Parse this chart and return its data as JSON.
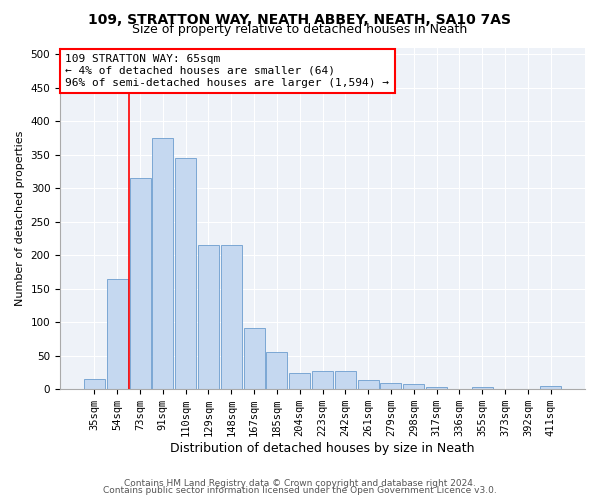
{
  "title1": "109, STRATTON WAY, NEATH ABBEY, NEATH, SA10 7AS",
  "title2": "Size of property relative to detached houses in Neath",
  "xlabel": "Distribution of detached houses by size in Neath",
  "ylabel": "Number of detached properties",
  "categories": [
    "35sqm",
    "54sqm",
    "73sqm",
    "91sqm",
    "110sqm",
    "129sqm",
    "148sqm",
    "167sqm",
    "185sqm",
    "204sqm",
    "223sqm",
    "242sqm",
    "261sqm",
    "279sqm",
    "298sqm",
    "317sqm",
    "336sqm",
    "355sqm",
    "373sqm",
    "392sqm",
    "411sqm"
  ],
  "values": [
    15,
    165,
    315,
    375,
    345,
    215,
    215,
    92,
    55,
    24,
    27,
    27,
    14,
    10,
    8,
    4,
    0,
    4,
    0,
    0,
    5
  ],
  "bar_color": "#c5d8f0",
  "bar_edge_color": "#7ba7d4",
  "vline_x": 1.5,
  "vline_color": "red",
  "annotation_text": "109 STRATTON WAY: 65sqm\n← 4% of detached houses are smaller (64)\n96% of semi-detached houses are larger (1,594) →",
  "box_color": "red",
  "ylim": [
    0,
    510
  ],
  "yticks": [
    0,
    50,
    100,
    150,
    200,
    250,
    300,
    350,
    400,
    450,
    500
  ],
  "bg_color": "#eef2f8",
  "footer1": "Contains HM Land Registry data © Crown copyright and database right 2024.",
  "footer2": "Contains public sector information licensed under the Open Government Licence v3.0.",
  "title1_fontsize": 10,
  "title2_fontsize": 9,
  "xlabel_fontsize": 9,
  "ylabel_fontsize": 8,
  "tick_fontsize": 7.5,
  "annotation_fontsize": 8,
  "footer_fontsize": 6.5
}
